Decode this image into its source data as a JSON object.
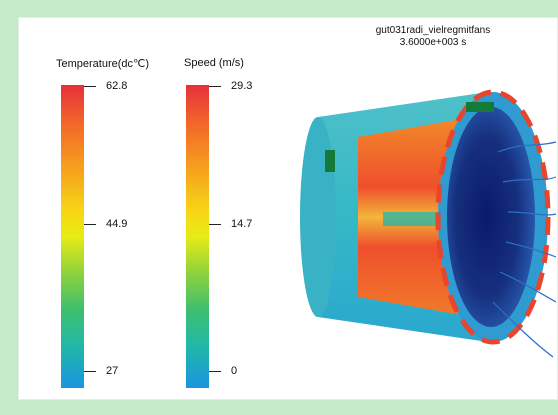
{
  "title": {
    "name": "gut031radi_vielregmitfans",
    "time": "3.6000e+003 s"
  },
  "legends": [
    {
      "title": "Temperature(dc℃)",
      "max": "62.8",
      "mid": "44.9",
      "min": "27"
    },
    {
      "title": "Speed (m/s)",
      "max": "29.3",
      "mid": "14.7",
      "min": "0"
    }
  ],
  "colors": {
    "hot": "#e6303a",
    "warm": "#f7d715",
    "mid": "#3fbf6d",
    "cool": "#1a95e0",
    "dark_blue": "#0e2a7a"
  },
  "icons": [
    "motor-cfd-render"
  ]
}
